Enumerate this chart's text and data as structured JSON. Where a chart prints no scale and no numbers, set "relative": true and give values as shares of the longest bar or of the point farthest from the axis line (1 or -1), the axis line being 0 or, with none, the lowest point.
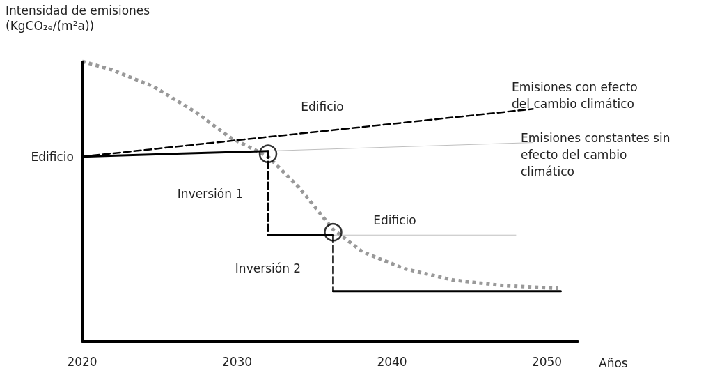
{
  "chart_data": {
    "type": "line",
    "relative": true,
    "ylabel": "Intensidad de emisiones\n(KgCO₂ₑ/(m²a))",
    "xlabel": "Años",
    "xlim": [
      2020,
      2052
    ],
    "xticks": [
      2020,
      2030,
      2040,
      2050
    ],
    "grid": false,
    "marker": "none",
    "ref_lines": [
      {
        "axis": "x",
        "value": 2020,
        "color": "#000000"
      }
    ],
    "series": [
      {
        "color": "#999999",
        "line_style": "dotted",
        "x": [
          2020,
          2021.9,
          2024.6,
          2027.3,
          2029.5,
          2032,
          2034,
          2036.2,
          2038.1,
          2040.8,
          2043.9,
          2047.1,
          2050.7
        ],
        "values": [
          1,
          0.97,
          0.91,
          0.82,
          0.73,
          0.66,
          0.55,
          0.4,
          0.32,
          0.26,
          0.22,
          0.2,
          0.19
        ]
      },
      {
        "color": "#000000",
        "line_style": "dashed",
        "x": [
          2020,
          2049.1
        ],
        "values": [
          0.66,
          0.83
        ]
      },
      {
        "color": "#bfbfbf",
        "line_style": "solid",
        "x": [
          2032,
          2049.1
        ],
        "values": [
          0.68,
          0.71
        ]
      },
      {
        "color": "#bfbfbf",
        "line_style": "solid",
        "x": [
          2036.2,
          2048
        ],
        "values": [
          0.38,
          0.38
        ]
      },
      {
        "color": "#000000",
        "line_style": "solid",
        "x": [
          2020,
          2032
        ],
        "values": [
          0.66,
          0.68
        ]
      },
      {
        "color": "#000000",
        "line_style": "dashed",
        "x": [
          2032,
          2032
        ],
        "values": [
          0.68,
          0.38
        ]
      },
      {
        "color": "#000000",
        "line_style": "solid",
        "x": [
          2032,
          2036.2
        ],
        "values": [
          0.38,
          0.38
        ]
      },
      {
        "color": "#000000",
        "line_style": "dashed",
        "x": [
          2036.2,
          2036.2
        ],
        "values": [
          0.38,
          0.18
        ]
      },
      {
        "color": "#000000",
        "line_style": "solid",
        "x": [
          2036.2,
          2050.9
        ],
        "values": [
          0.18,
          0.18
        ]
      },
      {
        "type": "scatter",
        "marker": "circle",
        "color": "#000000",
        "x": [
          2032,
          2036.2
        ],
        "values": [
          0.67,
          0.39
        ]
      }
    ],
    "annotations": [
      "Emisiones con efecto\ndel cambio climático",
      "Emisiones constantes sin\nefecto del cambio\nclimático",
      "Edificio",
      {
        "text": "Edificio",
        "x": 2020,
        "y": 0.66
      },
      "Inversión 1",
      "Edificio",
      "Inversión 2"
    ]
  }
}
